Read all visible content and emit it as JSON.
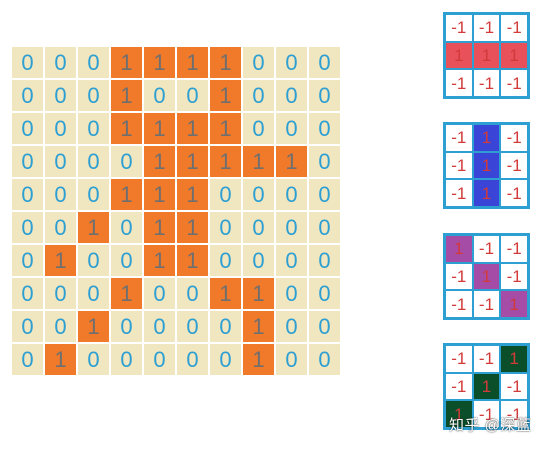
{
  "grid": {
    "rows": [
      [
        0,
        0,
        0,
        1,
        1,
        1,
        1,
        0,
        0,
        0
      ],
      [
        0,
        0,
        0,
        1,
        0,
        0,
        1,
        0,
        0,
        0
      ],
      [
        0,
        0,
        0,
        1,
        1,
        1,
        1,
        0,
        0,
        0
      ],
      [
        0,
        0,
        0,
        0,
        1,
        1,
        1,
        1,
        1,
        0
      ],
      [
        0,
        0,
        0,
        1,
        1,
        1,
        0,
        0,
        0,
        0
      ],
      [
        0,
        0,
        1,
        0,
        1,
        1,
        0,
        0,
        0,
        0
      ],
      [
        0,
        1,
        0,
        0,
        1,
        1,
        0,
        0,
        0,
        0
      ],
      [
        0,
        0,
        0,
        1,
        0,
        0,
        1,
        1,
        0,
        0
      ],
      [
        0,
        0,
        1,
        0,
        0,
        0,
        0,
        1,
        0,
        0
      ],
      [
        0,
        1,
        0,
        0,
        0,
        0,
        0,
        1,
        0,
        0
      ]
    ],
    "colors": {
      "zero_bg": "#f0e6c0",
      "zero_text": "#2d9fd2",
      "one_bg": "#f07a2a",
      "one_text": "#6f6f6f"
    }
  },
  "filters": [
    {
      "values": [
        [
          "-1",
          "-1",
          "-1"
        ],
        [
          "1",
          "1",
          "1"
        ],
        [
          "-1",
          "-1",
          "-1"
        ]
      ],
      "highlight": [
        [
          0,
          0,
          0
        ],
        [
          1,
          1,
          1
        ],
        [
          0,
          0,
          0
        ]
      ],
      "color": "#e8505a"
    },
    {
      "values": [
        [
          "-1",
          "1",
          "-1"
        ],
        [
          "-1",
          "1",
          "-1"
        ],
        [
          "-1",
          "1",
          "-1"
        ]
      ],
      "highlight": [
        [
          0,
          1,
          0
        ],
        [
          0,
          1,
          0
        ],
        [
          0,
          1,
          0
        ]
      ],
      "color": "#3a44d6"
    },
    {
      "values": [
        [
          "1",
          "-1",
          "-1"
        ],
        [
          "-1",
          "1",
          "-1"
        ],
        [
          "-1",
          "-1",
          "1"
        ]
      ],
      "highlight": [
        [
          1,
          0,
          0
        ],
        [
          0,
          1,
          0
        ],
        [
          0,
          0,
          1
        ]
      ],
      "color": "#a44ca6"
    },
    {
      "values": [
        [
          "-1",
          "-1",
          "1"
        ],
        [
          "-1",
          "1",
          "-1"
        ],
        [
          "1",
          "-1",
          "-1"
        ]
      ],
      "highlight": [
        [
          0,
          0,
          1
        ],
        [
          0,
          1,
          0
        ],
        [
          1,
          0,
          0
        ]
      ],
      "color": "#0b4f2a"
    }
  ],
  "watermark": "知乎 @深蓝"
}
